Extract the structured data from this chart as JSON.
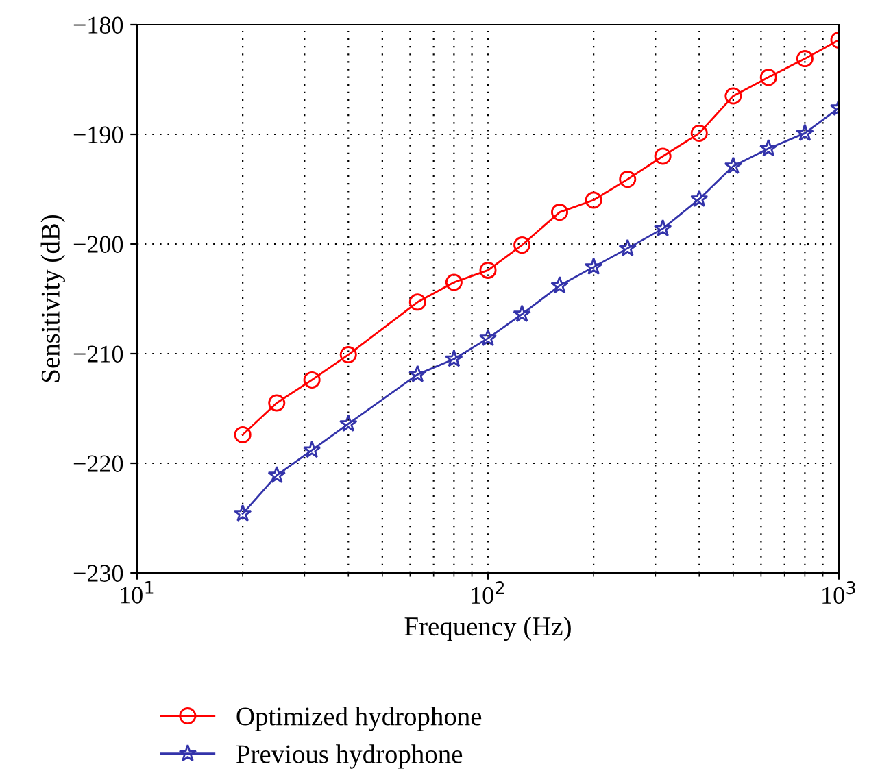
{
  "chart_data": {
    "type": "line",
    "xlabel": "Frequency (Hz)",
    "ylabel": "Sensitivity (dB)",
    "log": "x",
    "grid": true,
    "legend": "bottom",
    "xlim": [
      10,
      1000
    ],
    "xticks": [
      {
        "value": 10,
        "label": "10$^{1}$"
      },
      {
        "value": 100,
        "label": "10$^{2}$"
      },
      {
        "value": 1000,
        "label": "10$^{3}$"
      }
    ],
    "ylim": [
      -230,
      -180
    ],
    "yticks": [
      {
        "value": -230,
        "label": "−230"
      },
      {
        "value": -220,
        "label": "−220"
      },
      {
        "value": -210,
        "label": "−210"
      },
      {
        "value": -200,
        "label": "−200"
      },
      {
        "value": -190,
        "label": "−190"
      },
      {
        "value": -180,
        "label": "−180"
      }
    ],
    "x": [
      20,
      25,
      31.5,
      40,
      63,
      80,
      100,
      125,
      160,
      200,
      250,
      315,
      400,
      500,
      630,
      800,
      1000
    ],
    "series": [
      {
        "name": "Optimized hydrophone",
        "color": "#ff0000",
        "marker": "circle",
        "values": [
          -217.4,
          -214.5,
          -212.4,
          -210.1,
          -205.3,
          -203.5,
          -202.4,
          -200.1,
          -197.1,
          -196.0,
          -194.1,
          -192.0,
          -189.9,
          -186.5,
          -184.8,
          -183.1,
          -181.4
        ]
      },
      {
        "name": "Previous hydrophone",
        "color": "#3333aa",
        "marker": "star",
        "values": [
          -224.6,
          -221.1,
          -218.8,
          -216.4,
          -211.9,
          -210.5,
          -208.6,
          -206.4,
          -203.8,
          -202.1,
          -200.4,
          -198.6,
          -195.9,
          -192.9,
          -191.3,
          -189.9,
          -187.6
        ]
      }
    ]
  }
}
